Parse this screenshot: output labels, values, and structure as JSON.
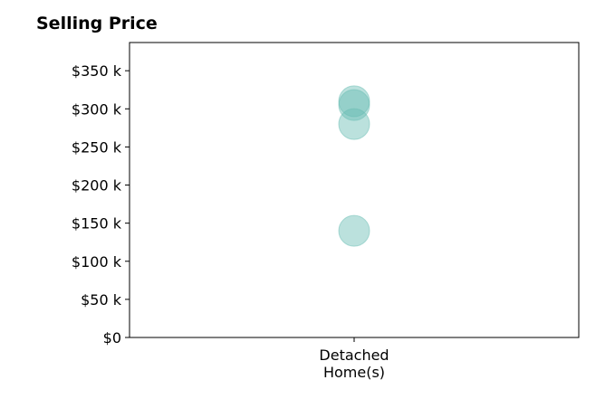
{
  "chart_data": {
    "type": "scatter",
    "title": "Selling Price",
    "xlabel": "",
    "ylabel": "",
    "categories": [
      "Detached\nHome(s)"
    ],
    "points": [
      {
        "category": 0,
        "y": 310000
      },
      {
        "category": 0,
        "y": 305000
      },
      {
        "category": 0,
        "y": 280000
      },
      {
        "category": 0,
        "y": 140000
      }
    ],
    "ylim": [
      0,
      387000
    ],
    "yticks": [
      0,
      50000,
      100000,
      150000,
      200000,
      250000,
      300000,
      350000
    ],
    "ytick_labels": [
      "$0",
      "$50 k",
      "$100 k",
      "$150 k",
      "$200 k",
      "$250 k",
      "$300 k",
      "$350 k"
    ],
    "grid": false,
    "legend": "none",
    "marker_color": "#69bdb4"
  }
}
